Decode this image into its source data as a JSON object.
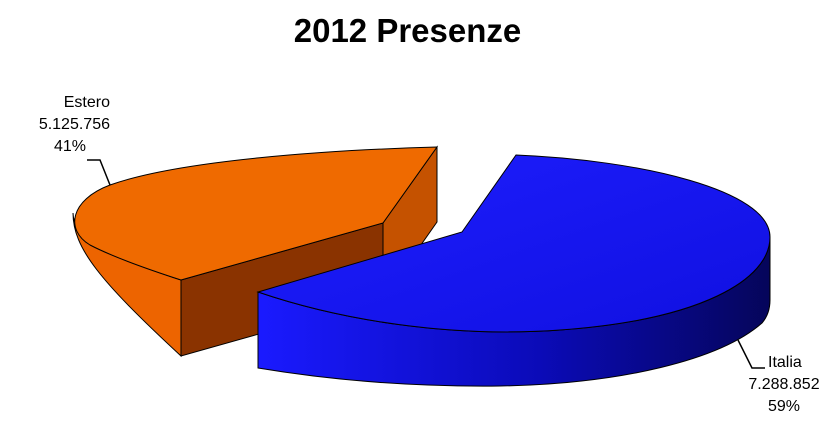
{
  "chart_data": {
    "type": "pie",
    "title": "2012 Presenze",
    "slices": [
      {
        "name": "Estero",
        "value": 5125756,
        "value_label": "5.125.756",
        "percent_label": "41%",
        "color": "#ee6a00",
        "exploded": true
      },
      {
        "name": "Italia",
        "value": 7288852,
        "value_label": "7.288.852",
        "percent_label": "59%",
        "color": "#1414f0",
        "exploded": true
      }
    ],
    "style": "3d-exploded",
    "legend": "none"
  }
}
